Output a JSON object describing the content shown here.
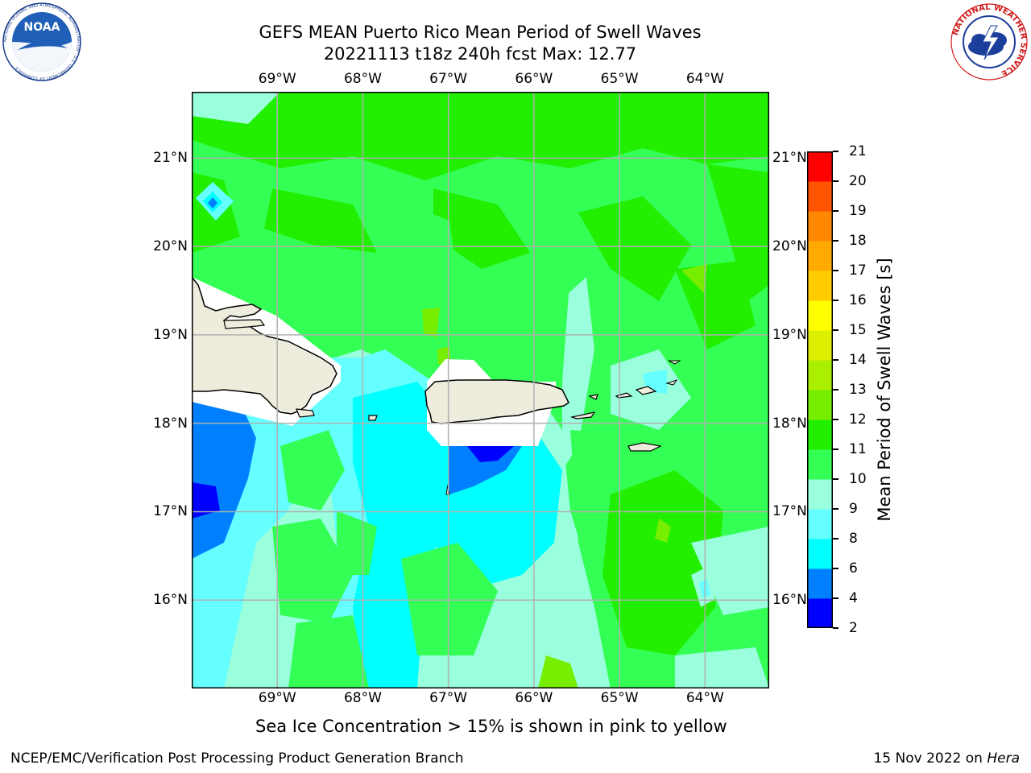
{
  "header": {
    "title_line1": "GEFS MEAN Puerto Rico Mean Period of Swell Waves",
    "title_line2": "20221113 t18z 240h fcst   Max: 12.77"
  },
  "logos": {
    "noaa_text": "NOAA",
    "noaa_ring_text": "NATIONAL OCEANIC AND ATMOSPHERIC ADMINISTRATION · U.S. DEPARTMENT OF COMMERCE",
    "nws_ring_text": "NATIONAL WEATHER SERVICE"
  },
  "map": {
    "lon_labels": [
      "69°W",
      "68°W",
      "67°W",
      "66°W",
      "65°W",
      "64°W"
    ],
    "lat_labels": [
      "21°N",
      "20°N",
      "19°N",
      "18°N",
      "17°N",
      "16°N"
    ],
    "lon_values": [
      -69,
      -68,
      -67,
      -66,
      -65,
      -64
    ],
    "lat_values": [
      21,
      20,
      19,
      18,
      17,
      16
    ],
    "lon_range": [
      -70.0,
      -63.25
    ],
    "lat_range": [
      15.0,
      21.75
    ],
    "gridlines": true,
    "land_color": "#eeecdc",
    "coast_color": "#000000",
    "grid_color": "#b0b0b0"
  },
  "colorbar": {
    "label": "Mean Period of Swell Waves [s]",
    "levels": [
      2,
      4,
      6,
      8,
      9,
      10,
      11,
      12,
      13,
      14,
      15,
      16,
      17,
      18,
      19,
      20,
      21
    ],
    "colors": [
      "#0000ff",
      "#0080ff",
      "#00ffff",
      "#66ffff",
      "#99ffdd",
      "#33ff55",
      "#22ee00",
      "#77ee00",
      "#aaee00",
      "#ddee00",
      "#ffff00",
      "#ffcc00",
      "#ffaa00",
      "#ff8800",
      "#ff5500",
      "#ff0000"
    ]
  },
  "subtitle": "Sea Ice Concentration > 15% is shown in pink to yellow",
  "footer": {
    "left": "NCEP/EMC/Verification Post Processing Product Generation Branch",
    "right_date": "15 Nov 2022 on ",
    "right_machine": "Hera"
  }
}
